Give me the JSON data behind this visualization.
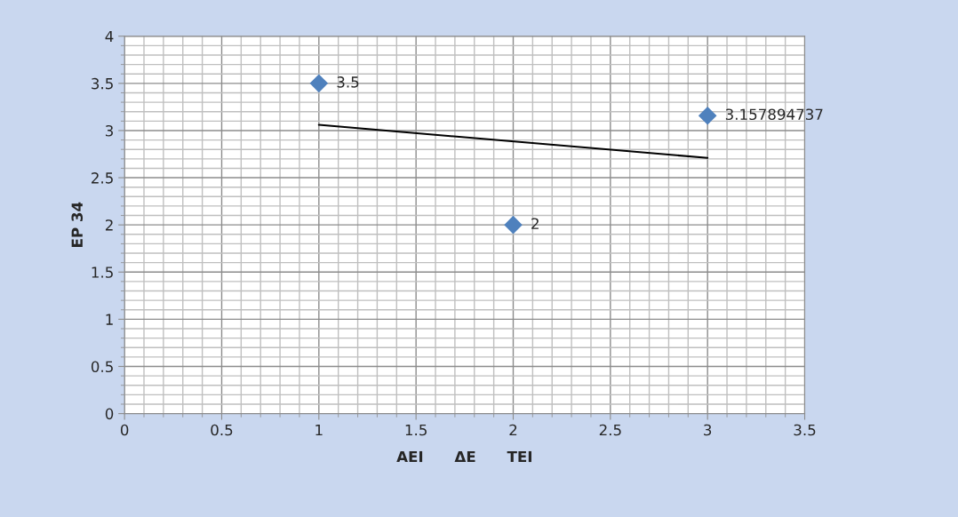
{
  "chart_data": {
    "type": "scatter",
    "ylabel": "EP 34",
    "xlabel": "AEI      ΔE      TEI",
    "xlim": [
      0,
      3.5
    ],
    "xticks": [
      0,
      0.5,
      1,
      1.5,
      2,
      2.5,
      3,
      3.5
    ],
    "ylim": [
      0,
      4
    ],
    "yticks": [
      0,
      0.5,
      1,
      1.5,
      2,
      2.5,
      3,
      3.5,
      4
    ],
    "grid": true,
    "legend": false,
    "marker": "diamond",
    "series": [
      {
        "color": "#4f81bd",
        "x": [
          1,
          2,
          3
        ],
        "values": [
          3.5,
          2,
          3.157894737
        ],
        "value_labels": [
          "3.5",
          "2",
          "3.157894737"
        ]
      },
      {
        "type": "line",
        "color": "#000000",
        "x": [
          1,
          3
        ],
        "values": [
          3.06,
          2.71
        ],
        "marker": "none"
      }
    ]
  }
}
